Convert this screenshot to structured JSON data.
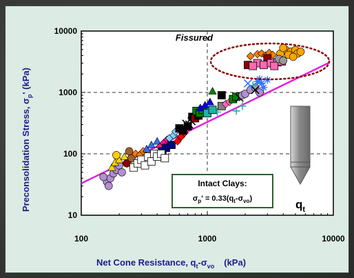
{
  "chart_data": {
    "type": "scatter",
    "title": "",
    "xlabel": "Net Cone Resistance, q_t-σ_vo (kPa)",
    "ylabel": "Preconsolidation Stress, σ_p' (kPa)",
    "xscale": "log",
    "yscale": "log",
    "xlim": [
      100,
      10000
    ],
    "ylim": [
      10,
      10000
    ],
    "x_ticks": [
      "100",
      "1000",
      "10000"
    ],
    "y_ticks": [
      "10",
      "100",
      "1000",
      "10000"
    ],
    "grid": "dashed lines at 1000 (x) and 100, 1000 (y)",
    "trend_line": {
      "label": "σ_p' = 0.33(q_t-σ_vo)",
      "coefficient": 0.33,
      "color": "#e020e0"
    },
    "annotations": {
      "fissured": "Fissured",
      "intact_title": "Intact Clays:",
      "intact_equation_prefix": "σ",
      "intact_equation_sub": "p",
      "intact_equation_rest": "' = 0.33(q",
      "intact_equation_sub2": "t",
      "intact_equation_minus": "-σ",
      "intact_equation_sub3": "vo",
      "intact_equation_end": ")",
      "cone_label": "q",
      "cone_label_sub": "t"
    },
    "axis_labels": {
      "x_main": "Net Cone Resistance, q",
      "x_sub1": "t",
      "x_mid": "-σ",
      "x_sub2": "vo",
      "x_units": "(kPa)",
      "y_main": "Preconsolidation Stress, σ",
      "y_sub": "p",
      "y_end": "' (kPa)"
    },
    "fissured_points": [
      [
        2500,
        4200,
        "#ff7f00",
        "diamond"
      ],
      [
        2700,
        4300,
        "#ff7f00",
        "diamond"
      ],
      [
        2900,
        4000,
        "#ff7f00",
        "diamond"
      ],
      [
        3100,
        4400,
        "#ff7f00",
        "diamond"
      ],
      [
        3300,
        4100,
        "#ff7f00",
        "diamond"
      ],
      [
        2200,
        3900,
        "#ff7f00",
        "diamond"
      ],
      [
        4200,
        4900,
        "#ffa500",
        "circle"
      ],
      [
        4600,
        4600,
        "#ffa500",
        "circle"
      ],
      [
        5000,
        4900,
        "#ffa500",
        "circle"
      ],
      [
        4400,
        4100,
        "#ffa500",
        "circle"
      ],
      [
        5200,
        4300,
        "#ffa500",
        "circle"
      ],
      [
        3800,
        4300,
        "#ffa500",
        "circle"
      ],
      [
        4800,
        3800,
        "#ffa500",
        "circle"
      ],
      [
        5500,
        4600,
        "#ffa500",
        "circle"
      ],
      [
        4000,
        5300,
        "#ffa500",
        "circle"
      ],
      [
        3000,
        3600,
        "#8b0000",
        "square"
      ],
      [
        2500,
        3000,
        "#ff69b4",
        "square"
      ],
      [
        2800,
        2800,
        "#ff69b4",
        "square"
      ],
      [
        3200,
        3000,
        "#ff69b4",
        "square"
      ],
      [
        3600,
        3100,
        "#ff69b4",
        "square"
      ],
      [
        2100,
        2800,
        "#8b0000",
        "square"
      ],
      [
        2300,
        2700,
        "#ff69b4",
        "square"
      ],
      [
        3400,
        2700,
        "#ff69b4",
        "square"
      ],
      [
        3900,
        3200,
        "#ff69b4",
        "square"
      ],
      [
        3700,
        3500,
        "#999999",
        "circle"
      ],
      [
        4000,
        3300,
        "#999999",
        "circle"
      ]
    ],
    "intact_points": [
      [
        160,
        35,
        "#b090d0",
        "circle"
      ],
      [
        170,
        40,
        "#b090d0",
        "circle"
      ],
      [
        180,
        48,
        "#b090d0",
        "circle"
      ],
      [
        190,
        55,
        "#b090d0",
        "circle"
      ],
      [
        200,
        65,
        "#b090d0",
        "circle"
      ],
      [
        210,
        50,
        "#b090d0",
        "circle"
      ],
      [
        175,
        60,
        "#ffd700",
        "triangle"
      ],
      [
        185,
        72,
        "#ffd700",
        "triangle"
      ],
      [
        200,
        80,
        "#ffd700",
        "triangle"
      ],
      [
        220,
        90,
        "#ffd700",
        "triangle"
      ],
      [
        240,
        75,
        "#ffd700",
        "triangle"
      ],
      [
        190,
        95,
        "#ffcc00",
        "circle"
      ],
      [
        230,
        70,
        "#8b0000",
        "circle"
      ],
      [
        250,
        85,
        "#a06030",
        "circle"
      ],
      [
        270,
        100,
        "#ff7f00",
        "diamond"
      ],
      [
        290,
        95,
        "#ff7f00",
        "diamond"
      ],
      [
        310,
        110,
        "#ff7f00",
        "diamond"
      ],
      [
        260,
        60,
        "#ffffff",
        "square"
      ],
      [
        280,
        70,
        "#ffffff",
        "square"
      ],
      [
        300,
        80,
        "#ffffff",
        "square"
      ],
      [
        320,
        65,
        "#ffffff",
        "square"
      ],
      [
        340,
        90,
        "#ffffff",
        "square"
      ],
      [
        360,
        75,
        "#ffffff",
        "square"
      ],
      [
        380,
        100,
        "#ffffff",
        "square"
      ],
      [
        330,
        120,
        "#3070ff",
        "triangle"
      ],
      [
        360,
        140,
        "#3070ff",
        "triangle"
      ],
      [
        400,
        160,
        "#3070ff",
        "triangle"
      ],
      [
        420,
        130,
        "#ff1493",
        "diamond"
      ],
      [
        450,
        150,
        "#ff1493",
        "diamond"
      ],
      [
        480,
        170,
        "#ff1493",
        "diamond"
      ],
      [
        440,
        110,
        "#000080",
        "square"
      ],
      [
        470,
        125,
        "#000080",
        "square"
      ],
      [
        520,
        140,
        "#000080",
        "square"
      ],
      [
        400,
        90,
        "#ffffff",
        "square"
      ],
      [
        430,
        100,
        "#ffffff",
        "square"
      ],
      [
        460,
        85,
        "#ffffff",
        "square"
      ],
      [
        500,
        180,
        "#7fd0ff",
        "diamond"
      ],
      [
        540,
        200,
        "#7fd0ff",
        "diamond"
      ],
      [
        560,
        230,
        "#7fd0ff",
        "diamond"
      ],
      [
        580,
        160,
        "#ff0000",
        "diamond"
      ],
      [
        620,
        190,
        "#ff0000",
        "diamond"
      ],
      [
        660,
        220,
        "#ff0000",
        "diamond"
      ],
      [
        600,
        260,
        "#000000",
        "square"
      ],
      [
        640,
        240,
        "#000000",
        "square"
      ],
      [
        700,
        280,
        "#000000",
        "square"
      ],
      [
        680,
        310,
        "#000000",
        "x"
      ],
      [
        720,
        300,
        "#000000",
        "x"
      ],
      [
        750,
        340,
        "#000000",
        "x"
      ],
      [
        760,
        400,
        "#000000",
        "square"
      ],
      [
        800,
        380,
        "#8b0000",
        "square"
      ],
      [
        850,
        420,
        "#000000",
        "square"
      ],
      [
        820,
        500,
        "#008000",
        "square"
      ],
      [
        870,
        460,
        "#008000",
        "square"
      ],
      [
        920,
        520,
        "#008000",
        "square"
      ],
      [
        880,
        560,
        "#0000ff",
        "triangle"
      ],
      [
        960,
        620,
        "#0000ff",
        "triangle"
      ],
      [
        1050,
        700,
        "#0000ff",
        "triangle"
      ],
      [
        1000,
        460,
        "#20b2aa",
        "square"
      ],
      [
        1100,
        520,
        "#20b2aa",
        "square"
      ],
      [
        1200,
        480,
        "#20b2aa",
        "plus"
      ],
      [
        1300,
        600,
        "#808080",
        "square"
      ],
      [
        1400,
        650,
        "#ff69b4",
        "diamond"
      ],
      [
        1500,
        700,
        "#ff69b4",
        "diamond"
      ],
      [
        1600,
        780,
        "#008000",
        "square"
      ],
      [
        1700,
        850,
        "#008000",
        "square"
      ],
      [
        1800,
        820,
        "#000000",
        "x"
      ],
      [
        1900,
        900,
        "#b090d0",
        "circle"
      ],
      [
        2000,
        950,
        "#b090d0",
        "circle"
      ],
      [
        2200,
        1100,
        "#b090d0",
        "circle"
      ],
      [
        2400,
        1200,
        "#b090d0",
        "circle"
      ],
      [
        2600,
        1000,
        "#b090d0",
        "circle"
      ],
      [
        2300,
        1300,
        "#20b2aa",
        "plus"
      ],
      [
        2500,
        1500,
        "#3070ff",
        "star"
      ],
      [
        2700,
        1400,
        "#3070ff",
        "star"
      ],
      [
        3000,
        1600,
        "#3070ff",
        "star"
      ],
      [
        2800,
        1200,
        "#3070ff",
        "star"
      ],
      [
        2600,
        1650,
        "#3070ff",
        "star"
      ],
      [
        2400,
        1100,
        "#000000",
        "x"
      ],
      [
        2100,
        1400,
        "#3070ff",
        "x"
      ],
      [
        1700,
        500,
        "#20b2aa",
        "plus"
      ],
      [
        1900,
        600,
        "#20b2aa",
        "plus"
      ],
      [
        150,
        42,
        "#b090d0",
        "circle"
      ],
      [
        165,
        30,
        "#b090d0",
        "circle"
      ],
      [
        240,
        110,
        "#a06030",
        "circle"
      ],
      [
        1100,
        1050,
        "#008000",
        "triangle"
      ],
      [
        1300,
        900,
        "#000000",
        "square"
      ]
    ]
  }
}
